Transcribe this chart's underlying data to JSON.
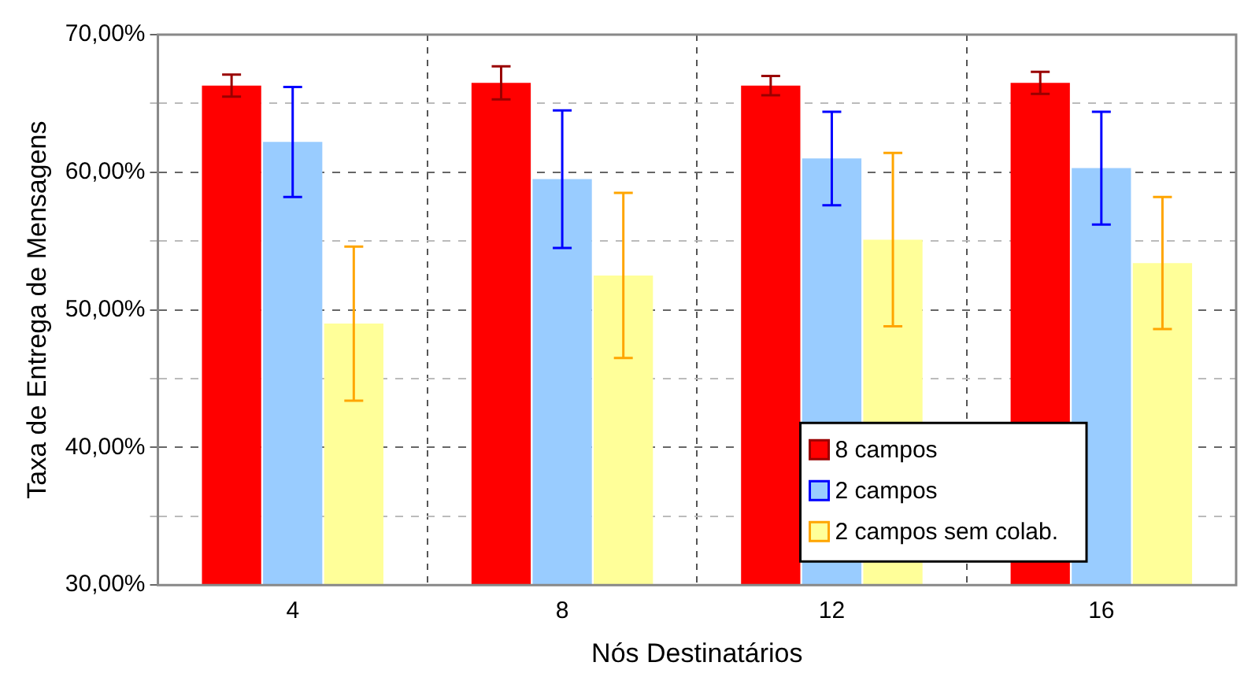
{
  "chart_data": {
    "type": "bar",
    "xlabel": "Nós Destinatários",
    "ylabel": "Taxa de Entrega de Mensagens",
    "categories": [
      "4",
      "8",
      "12",
      "16"
    ],
    "series": [
      {
        "name": "8 campos",
        "color": "#ff0000",
        "values": [
          66.3,
          66.5,
          66.3,
          66.5
        ],
        "errors": [
          0.8,
          1.2,
          0.7,
          0.8
        ]
      },
      {
        "name": "2 campos",
        "color": "#99ccff",
        "values": [
          62.2,
          59.5,
          61.0,
          60.3
        ],
        "errors": [
          4.0,
          5.0,
          3.4,
          4.1
        ]
      },
      {
        "name": "2 campos sem colab.",
        "color": "#ffff99",
        "values": [
          49.0,
          52.5,
          55.1,
          53.4
        ],
        "errors": [
          5.6,
          6.0,
          6.3,
          4.8
        ]
      }
    ],
    "ylim": [
      30,
      70
    ],
    "yticks": [
      {
        "value": 30,
        "label": "30,00%"
      },
      {
        "value": 35,
        "label": null
      },
      {
        "value": 40,
        "label": "40,00%"
      },
      {
        "value": 45,
        "label": null
      },
      {
        "value": 50,
        "label": "50,00%"
      },
      {
        "value": 55,
        "label": null
      },
      {
        "value": 60,
        "label": "60,00%"
      },
      {
        "value": 65,
        "label": null
      },
      {
        "value": 70,
        "label": "70,00%"
      }
    ],
    "grid": true,
    "legend": "bottom right"
  }
}
